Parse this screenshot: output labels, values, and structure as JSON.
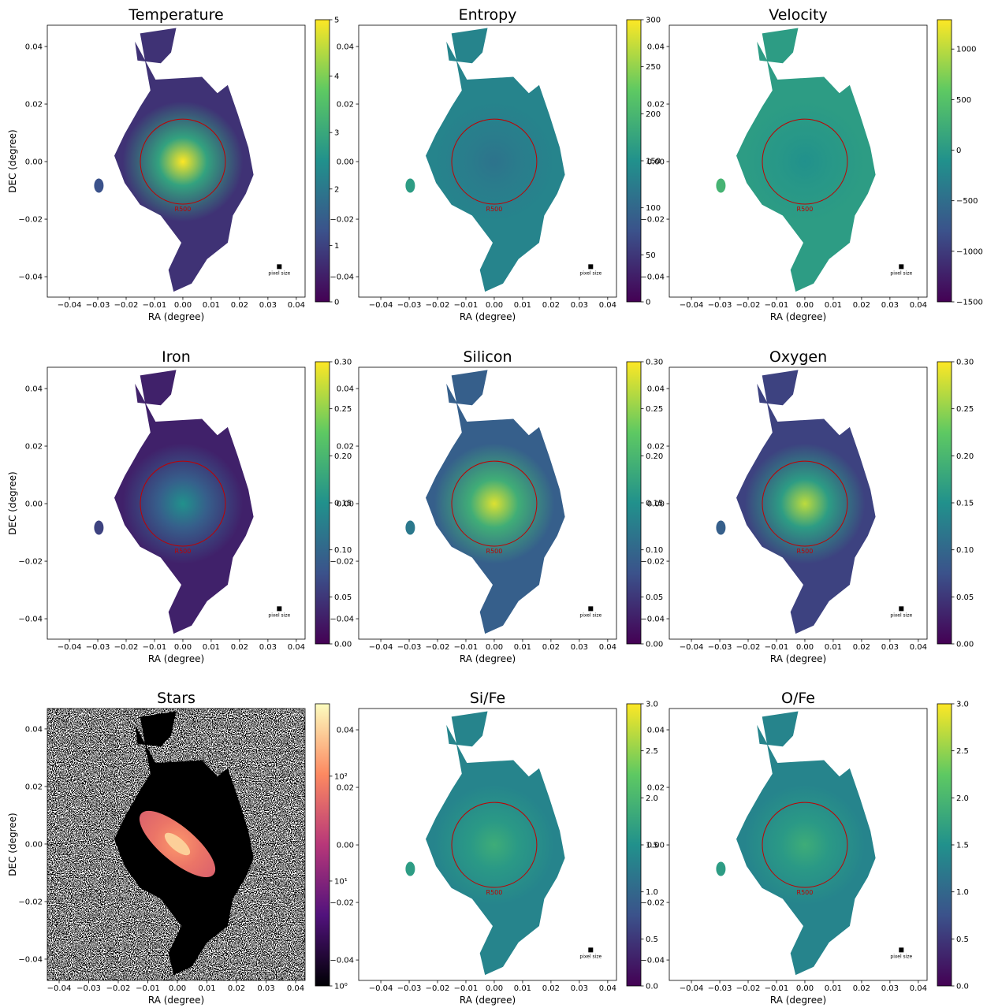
{
  "chart_data": [
    {
      "type": "image",
      "title": "Temperature",
      "xlabel": "RA (degree)",
      "ylabel": "DEC (degree)",
      "xlim": [
        -0.0478,
        0.0431
      ],
      "ylim": [
        -0.0471,
        0.0474
      ],
      "xticks": [
        {
          "value": -0.04,
          "label": "−0.04"
        },
        {
          "value": -0.03,
          "label": "−0.03"
        },
        {
          "value": -0.02,
          "label": "−0.02"
        },
        {
          "value": -0.01,
          "label": "−0.01"
        },
        {
          "value": 0,
          "label": "0.00"
        },
        0.01,
        0.02,
        0.03,
        0.04
      ],
      "yticks": [
        {
          "value": -0.04,
          "label": "−0.04"
        },
        {
          "value": -0.02,
          "label": "−0.02"
        },
        {
          "value": 0,
          "label": "0.00"
        },
        0.02,
        0.04
      ],
      "annotations": [
        "R500",
        "pixel size"
      ],
      "colorbar": {
        "colormap": "viridis",
        "lim": [
          0,
          5
        ],
        "ticks": [
          0,
          1,
          2,
          3,
          4,
          5
        ]
      }
    },
    {
      "type": "image",
      "title": "Entropy",
      "xlabel": "RA (degree)",
      "ylabel": "DEC (degree)",
      "xlim": [
        -0.0478,
        0.0431
      ],
      "ylim": [
        -0.0471,
        0.0474
      ],
      "xticks": [
        {
          "value": -0.04,
          "label": "−0.04"
        },
        {
          "value": -0.03,
          "label": "−0.03"
        },
        {
          "value": -0.02,
          "label": "−0.02"
        },
        {
          "value": -0.01,
          "label": "−0.01"
        },
        {
          "value": 0,
          "label": "0.00"
        },
        0.01,
        0.02,
        0.03,
        0.04
      ],
      "yticks": [
        {
          "value": -0.04,
          "label": "−0.04"
        },
        {
          "value": -0.02,
          "label": "−0.02"
        },
        {
          "value": 0,
          "label": "0.00"
        },
        0.02,
        0.04
      ],
      "annotations": [
        "R500",
        "pixel size"
      ],
      "colorbar": {
        "colormap": "viridis",
        "lim": [
          0,
          300
        ],
        "ticks": [
          0,
          50,
          100,
          150,
          200,
          250,
          300
        ]
      }
    },
    {
      "type": "image",
      "title": "Velocity",
      "xlabel": "RA (degree)",
      "ylabel": "DEC (degree)",
      "xlim": [
        -0.0478,
        0.0431
      ],
      "ylim": [
        -0.0471,
        0.0474
      ],
      "xticks": [
        {
          "value": -0.04,
          "label": "−0.04"
        },
        {
          "value": -0.03,
          "label": "−0.03"
        },
        {
          "value": -0.02,
          "label": "−0.02"
        },
        {
          "value": -0.01,
          "label": "−0.01"
        },
        {
          "value": 0,
          "label": "0.00"
        },
        0.01,
        0.02,
        0.03,
        0.04
      ],
      "yticks": [
        {
          "value": -0.04,
          "label": "−0.04"
        },
        {
          "value": -0.02,
          "label": "−0.02"
        },
        {
          "value": 0,
          "label": "0.00"
        },
        0.02,
        0.04
      ],
      "annotations": [
        "R500",
        "pixel size"
      ],
      "colorbar": {
        "colormap": "viridis",
        "lim": [
          -1500,
          1290
        ],
        "ticks": [
          {
            "value": -1500,
            "label": "−1500"
          },
          {
            "value": -1000,
            "label": "−1000"
          },
          {
            "value": -500,
            "label": "−500"
          },
          0,
          500,
          1000
        ]
      }
    },
    {
      "type": "image",
      "title": "Iron",
      "xlabel": "RA (degree)",
      "ylabel": "DEC (degree)",
      "xlim": [
        -0.0478,
        0.0431
      ],
      "ylim": [
        -0.0471,
        0.0474
      ],
      "xticks": [
        {
          "value": -0.04,
          "label": "−0.04"
        },
        {
          "value": -0.03,
          "label": "−0.03"
        },
        {
          "value": -0.02,
          "label": "−0.02"
        },
        {
          "value": -0.01,
          "label": "−0.01"
        },
        {
          "value": 0,
          "label": "0.00"
        },
        0.01,
        0.02,
        0.03,
        0.04
      ],
      "yticks": [
        {
          "value": -0.04,
          "label": "−0.04"
        },
        {
          "value": -0.02,
          "label": "−0.02"
        },
        {
          "value": 0,
          "label": "0.00"
        },
        0.02,
        0.04
      ],
      "annotations": [
        "R500",
        "pixel size"
      ],
      "colorbar": {
        "colormap": "viridis",
        "lim": [
          0,
          0.3
        ],
        "ticks": [
          {
            "value": 0,
            "label": "0.00"
          },
          0.05,
          {
            "value": 0.1,
            "label": "0.10"
          },
          0.15,
          {
            "value": 0.2,
            "label": "0.20"
          },
          0.25,
          {
            "value": 0.3,
            "label": "0.30"
          }
        ]
      }
    },
    {
      "type": "image",
      "title": "Silicon",
      "xlabel": "RA (degree)",
      "ylabel": "DEC (degree)",
      "xlim": [
        -0.0478,
        0.0431
      ],
      "ylim": [
        -0.0471,
        0.0474
      ],
      "xticks": [
        {
          "value": -0.04,
          "label": "−0.04"
        },
        {
          "value": -0.03,
          "label": "−0.03"
        },
        {
          "value": -0.02,
          "label": "−0.02"
        },
        {
          "value": -0.01,
          "label": "−0.01"
        },
        {
          "value": 0,
          "label": "0.00"
        },
        0.01,
        0.02,
        0.03,
        0.04
      ],
      "yticks": [
        {
          "value": -0.04,
          "label": "−0.04"
        },
        {
          "value": -0.02,
          "label": "−0.02"
        },
        {
          "value": 0,
          "label": "0.00"
        },
        0.02,
        0.04
      ],
      "annotations": [
        "R500",
        "pixel size"
      ],
      "colorbar": {
        "colormap": "viridis",
        "lim": [
          0,
          0.3
        ],
        "ticks": [
          {
            "value": 0,
            "label": "0.00"
          },
          0.05,
          {
            "value": 0.1,
            "label": "0.10"
          },
          0.15,
          {
            "value": 0.2,
            "label": "0.20"
          },
          0.25,
          {
            "value": 0.3,
            "label": "0.30"
          }
        ]
      }
    },
    {
      "type": "image",
      "title": "Oxygen",
      "xlabel": "RA (degree)",
      "ylabel": "DEC (degree)",
      "xlim": [
        -0.0478,
        0.0431
      ],
      "ylim": [
        -0.0471,
        0.0474
      ],
      "xticks": [
        {
          "value": -0.04,
          "label": "−0.04"
        },
        {
          "value": -0.03,
          "label": "−0.03"
        },
        {
          "value": -0.02,
          "label": "−0.02"
        },
        {
          "value": -0.01,
          "label": "−0.01"
        },
        {
          "value": 0,
          "label": "0.00"
        },
        0.01,
        0.02,
        0.03,
        0.04
      ],
      "yticks": [
        {
          "value": -0.04,
          "label": "−0.04"
        },
        {
          "value": -0.02,
          "label": "−0.02"
        },
        {
          "value": 0,
          "label": "0.00"
        },
        0.02,
        0.04
      ],
      "annotations": [
        "R500",
        "pixel size"
      ],
      "colorbar": {
        "colormap": "viridis",
        "lim": [
          0,
          0.3
        ],
        "ticks": [
          {
            "value": 0,
            "label": "0.00"
          },
          0.05,
          {
            "value": 0.1,
            "label": "0.10"
          },
          0.15,
          {
            "value": 0.2,
            "label": "0.20"
          },
          0.25,
          {
            "value": 0.3,
            "label": "0.30"
          }
        ]
      }
    },
    {
      "type": "image",
      "title": "Stars",
      "xlabel": "RA (degree)",
      "ylabel": "DEC (degree)",
      "xlim": [
        -0.044,
        0.0432
      ],
      "ylim": [
        -0.0474,
        0.0471
      ],
      "xticks": [
        {
          "value": -0.04,
          "label": "−0.04"
        },
        {
          "value": -0.03,
          "label": "−0.03"
        },
        {
          "value": -0.02,
          "label": "−0.02"
        },
        {
          "value": -0.01,
          "label": "−0.01"
        },
        {
          "value": 0,
          "label": "0.00"
        },
        0.01,
        0.02,
        0.03,
        0.04
      ],
      "yticks": [
        {
          "value": -0.04,
          "label": "−0.04"
        },
        {
          "value": -0.02,
          "label": "−0.02"
        },
        {
          "value": 0,
          "label": "0.00"
        },
        0.02,
        0.04
      ],
      "colorbar": {
        "colormap": "magma",
        "log": true,
        "lim": [
          1,
          490
        ],
        "ticks": [
          {
            "value": 1,
            "label": "10⁰"
          },
          {
            "value": 10,
            "label": "10¹"
          },
          {
            "value": 100,
            "label": "10²"
          }
        ]
      }
    },
    {
      "type": "image",
      "title": "Si/Fe",
      "xlabel": "RA (degree)",
      "ylabel": "DEC (degree)",
      "xlim": [
        -0.0478,
        0.0431
      ],
      "ylim": [
        -0.0471,
        0.0474
      ],
      "xticks": [
        {
          "value": -0.04,
          "label": "−0.04"
        },
        {
          "value": -0.03,
          "label": "−0.03"
        },
        {
          "value": -0.02,
          "label": "−0.02"
        },
        {
          "value": -0.01,
          "label": "−0.01"
        },
        {
          "value": 0,
          "label": "0.00"
        },
        0.01,
        0.02,
        0.03,
        0.04
      ],
      "yticks": [
        {
          "value": -0.04,
          "label": "−0.04"
        },
        {
          "value": -0.02,
          "label": "−0.02"
        },
        {
          "value": 0,
          "label": "0.00"
        },
        0.02,
        0.04
      ],
      "annotations": [
        "R500",
        "pixel size"
      ],
      "colorbar": {
        "colormap": "viridis",
        "lim": [
          0,
          3
        ],
        "ticks": [
          {
            "value": 0,
            "label": "0.0"
          },
          0.5,
          {
            "value": 1,
            "label": "1.0"
          },
          1.5,
          {
            "value": 2,
            "label": "2.0"
          },
          2.5,
          {
            "value": 3,
            "label": "3.0"
          }
        ]
      }
    },
    {
      "type": "image",
      "title": "O/Fe",
      "xlabel": "RA (degree)",
      "ylabel": "DEC (degree)",
      "xlim": [
        -0.0478,
        0.0431
      ],
      "ylim": [
        -0.0471,
        0.0474
      ],
      "xticks": [
        {
          "value": -0.04,
          "label": "−0.04"
        },
        {
          "value": -0.03,
          "label": "−0.03"
        },
        {
          "value": -0.02,
          "label": "−0.02"
        },
        {
          "value": -0.01,
          "label": "−0.01"
        },
        {
          "value": 0,
          "label": "0.00"
        },
        0.01,
        0.02,
        0.03,
        0.04
      ],
      "yticks": [
        {
          "value": -0.04,
          "label": "−0.04"
        },
        {
          "value": -0.02,
          "label": "−0.02"
        },
        {
          "value": 0,
          "label": "0.00"
        },
        0.02,
        0.04
      ],
      "annotations": [
        "R500",
        "pixel size"
      ],
      "colorbar": {
        "colormap": "viridis",
        "lim": [
          0,
          3
        ],
        "ticks": [
          {
            "value": 0,
            "label": "0.0"
          },
          0.5,
          {
            "value": 1,
            "label": "1.0"
          },
          1.5,
          {
            "value": 2,
            "label": "2.0"
          },
          2.5,
          {
            "value": 3,
            "label": "3.0"
          }
        ]
      }
    }
  ]
}
